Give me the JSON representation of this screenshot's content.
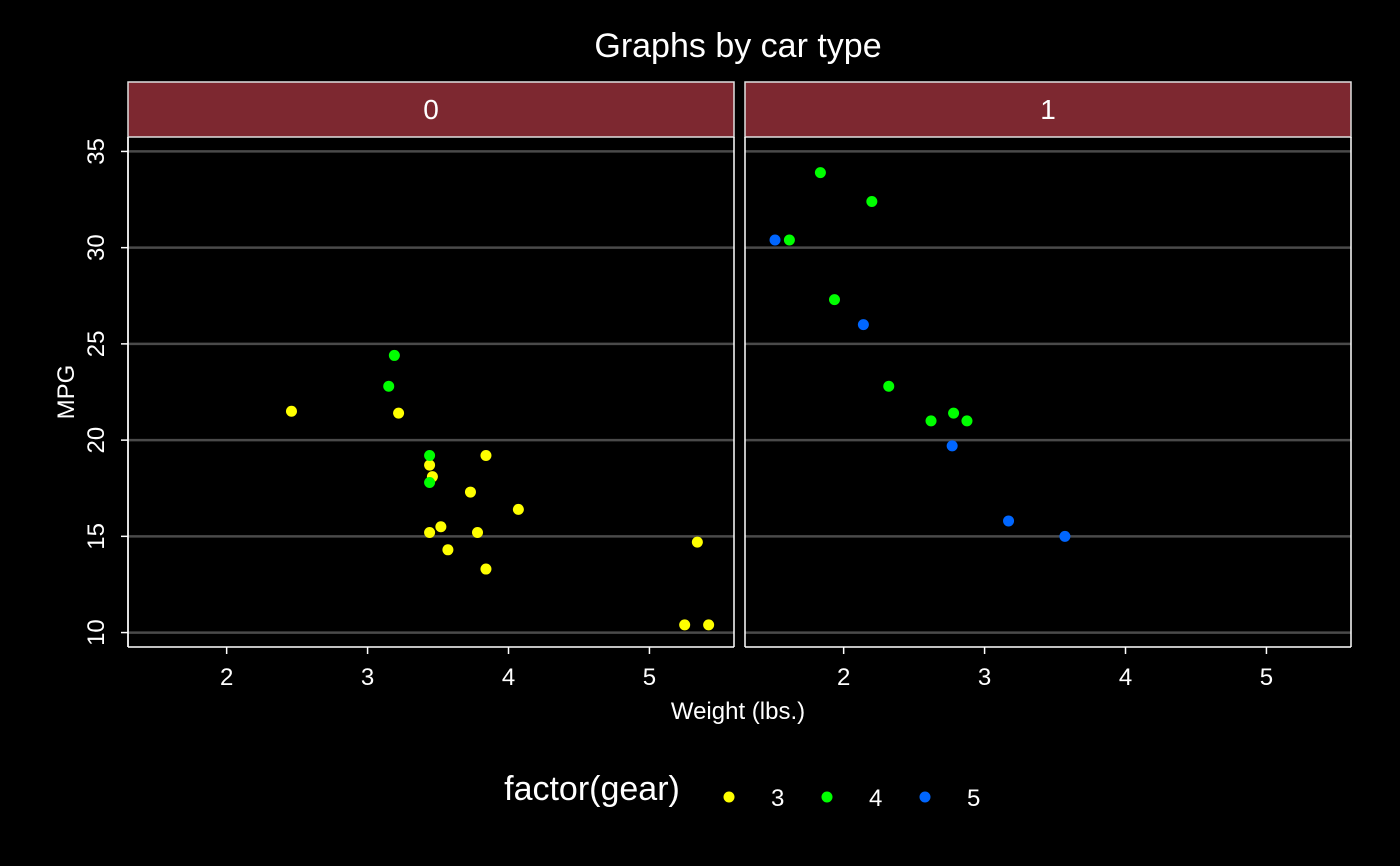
{
  "chart_data": {
    "type": "scatter",
    "title": "Graphs by car type",
    "xlabel": "Weight (lbs.)",
    "ylabel": "MPG",
    "xlim": [
      1.3,
      5.6
    ],
    "ylim": [
      9.25,
      35.75
    ],
    "xticks": [
      2,
      3,
      4,
      5
    ],
    "yticks": [
      10,
      15,
      20,
      25,
      30,
      35
    ],
    "grid": "horizontal",
    "legend": {
      "title": "factor(gear)",
      "placement": "bottom",
      "entries": [
        {
          "label": "3",
          "color": "#ffff00"
        },
        {
          "label": "4",
          "color": "#00ff00"
        },
        {
          "label": "5",
          "color": "#0066ff"
        }
      ]
    },
    "panels": [
      {
        "label": "0",
        "points": [
          {
            "x": 2.46,
            "y": 21.5,
            "gear": "3"
          },
          {
            "x": 3.22,
            "y": 21.4,
            "gear": "3"
          },
          {
            "x": 3.44,
            "y": 18.7,
            "gear": "3"
          },
          {
            "x": 3.46,
            "y": 18.1,
            "gear": "3"
          },
          {
            "x": 3.84,
            "y": 19.2,
            "gear": "3"
          },
          {
            "x": 3.73,
            "y": 17.3,
            "gear": "3"
          },
          {
            "x": 4.07,
            "y": 16.4,
            "gear": "3"
          },
          {
            "x": 3.52,
            "y": 15.5,
            "gear": "3"
          },
          {
            "x": 3.44,
            "y": 15.2,
            "gear": "3"
          },
          {
            "x": 3.78,
            "y": 15.2,
            "gear": "3"
          },
          {
            "x": 3.57,
            "y": 14.3,
            "gear": "3"
          },
          {
            "x": 3.84,
            "y": 13.3,
            "gear": "3"
          },
          {
            "x": 5.34,
            "y": 14.7,
            "gear": "3"
          },
          {
            "x": 5.25,
            "y": 10.4,
            "gear": "3"
          },
          {
            "x": 5.42,
            "y": 10.4,
            "gear": "3"
          },
          {
            "x": 3.19,
            "y": 24.4,
            "gear": "4"
          },
          {
            "x": 3.15,
            "y": 22.8,
            "gear": "4"
          },
          {
            "x": 3.44,
            "y": 19.2,
            "gear": "4"
          },
          {
            "x": 3.44,
            "y": 17.8,
            "gear": "4"
          }
        ]
      },
      {
        "label": "1",
        "points": [
          {
            "x": 2.62,
            "y": 21.0,
            "gear": "4"
          },
          {
            "x": 2.875,
            "y": 21.0,
            "gear": "4"
          },
          {
            "x": 2.32,
            "y": 22.8,
            "gear": "4"
          },
          {
            "x": 2.2,
            "y": 32.4,
            "gear": "4"
          },
          {
            "x": 1.615,
            "y": 30.4,
            "gear": "4"
          },
          {
            "x": 1.835,
            "y": 33.9,
            "gear": "4"
          },
          {
            "x": 1.935,
            "y": 27.3,
            "gear": "4"
          },
          {
            "x": 2.78,
            "y": 21.4,
            "gear": "4"
          },
          {
            "x": 2.14,
            "y": 26.0,
            "gear": "5"
          },
          {
            "x": 1.513,
            "y": 30.4,
            "gear": "5"
          },
          {
            "x": 3.17,
            "y": 15.8,
            "gear": "5"
          },
          {
            "x": 2.77,
            "y": 19.7,
            "gear": "5"
          },
          {
            "x": 3.57,
            "y": 15.0,
            "gear": "5"
          }
        ]
      }
    ]
  }
}
